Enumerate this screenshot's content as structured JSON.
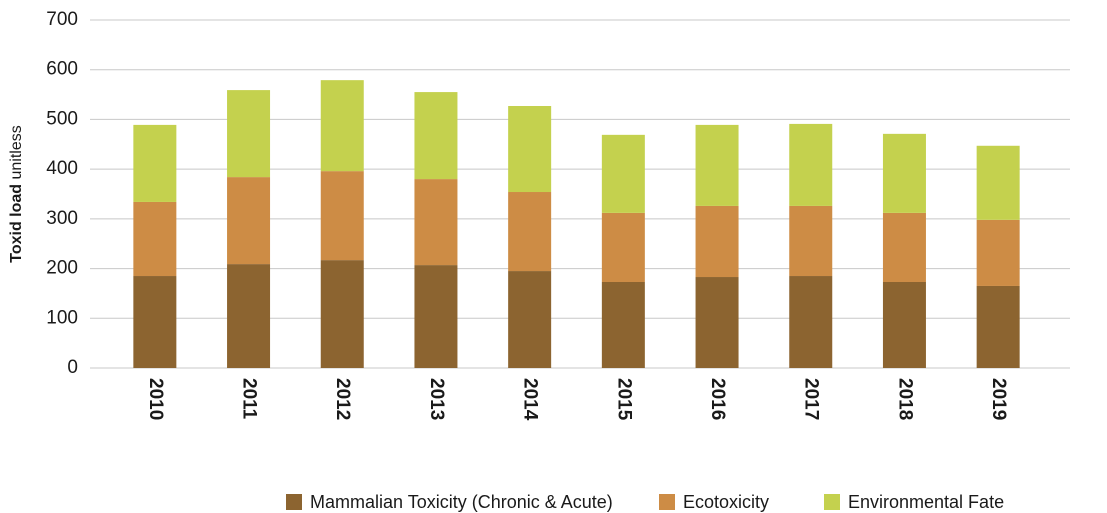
{
  "chart_data": {
    "type": "stacked_bar",
    "y_label": "Toxid load",
    "y_label_unit": "unitless",
    "categories": [
      "2010",
      "2011",
      "2012",
      "2013",
      "2014",
      "2015",
      "2016",
      "2017",
      "2018",
      "2019"
    ],
    "series": [
      {
        "name": "Mammalian Toxicity (Chronic & Acute)",
        "color": "#8c6430",
        "values": [
          185,
          209,
          217,
          207,
          195,
          173,
          183,
          185,
          173,
          165
        ]
      },
      {
        "name": "Ecotoxicity",
        "color": "#cd8c45",
        "values": [
          149,
          175,
          179,
          173,
          159,
          139,
          143,
          141,
          139,
          133
        ]
      },
      {
        "name": "Environmental Fate",
        "color": "#c4d14e",
        "values": [
          155,
          175,
          183,
          175,
          173,
          157,
          163,
          165,
          159,
          149
        ]
      }
    ],
    "ylim": [
      0,
      700
    ],
    "yticks": [
      0,
      100,
      200,
      300,
      400,
      500,
      600,
      700
    ],
    "grid": true,
    "legend": "bottom"
  }
}
